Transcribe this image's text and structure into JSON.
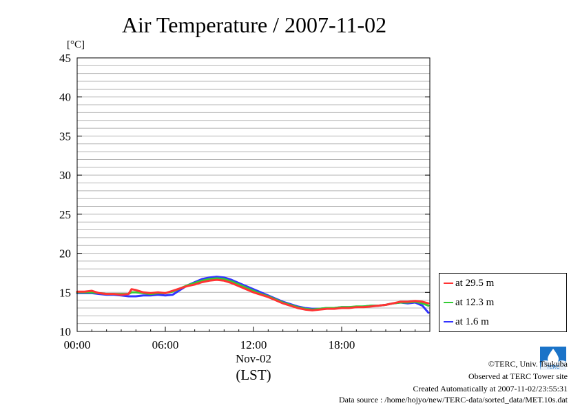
{
  "chart_data": {
    "type": "line",
    "title": "Air Temperature / 2007-11-02",
    "ylabel": "[°C]",
    "xlabel": "(LST)",
    "date_label": "Nov-02",
    "ylim": [
      10,
      45
    ],
    "yticks": [
      "10",
      "15",
      "20",
      "25",
      "30",
      "35",
      "40",
      "45"
    ],
    "xlim_hours": [
      0,
      24
    ],
    "xticks": [
      "00:00",
      "06:00",
      "12:00",
      "18:00"
    ],
    "grid": true,
    "legend_position": "right",
    "series": [
      {
        "name": "at 29.5 m",
        "color": "#ff3333",
        "x": [
          0,
          0.5,
          1,
          1.5,
          2,
          2.5,
          3,
          3.5,
          3.7,
          4,
          4.5,
          5,
          5.5,
          6,
          6.5,
          7,
          7.5,
          8,
          8.5,
          9,
          9.5,
          10,
          10.5,
          11,
          11.5,
          12,
          12.5,
          13,
          13.5,
          14,
          14.5,
          15,
          15.5,
          16,
          16.5,
          17,
          17.5,
          18,
          18.5,
          19,
          19.5,
          20,
          20.5,
          21,
          21.5,
          22,
          22.5,
          23,
          23.5,
          23.9
        ],
        "y": [
          15.1,
          15.1,
          15.2,
          14.9,
          14.8,
          14.8,
          14.7,
          14.8,
          15.4,
          15.3,
          15.0,
          14.9,
          15.0,
          14.9,
          15.2,
          15.5,
          15.8,
          16.0,
          16.3,
          16.5,
          16.6,
          16.5,
          16.2,
          15.8,
          15.4,
          15.0,
          14.7,
          14.4,
          14.0,
          13.6,
          13.3,
          13.0,
          12.8,
          12.7,
          12.8,
          12.9,
          12.9,
          13.0,
          13.0,
          13.1,
          13.1,
          13.2,
          13.3,
          13.4,
          13.6,
          13.8,
          13.8,
          13.9,
          13.8,
          13.6
        ]
      },
      {
        "name": "at 12.3 m",
        "color": "#33cc33",
        "x": [
          0,
          0.5,
          1,
          1.5,
          2,
          2.5,
          3,
          3.5,
          3.7,
          4,
          4.5,
          5,
          5.5,
          6,
          6.5,
          7,
          7.5,
          8,
          8.5,
          9,
          9.5,
          10,
          10.5,
          11,
          11.5,
          12,
          12.5,
          13,
          13.5,
          14,
          14.5,
          15,
          15.5,
          16,
          16.5,
          17,
          17.5,
          18,
          18.5,
          19,
          19.5,
          20,
          20.5,
          21,
          21.5,
          22,
          22.5,
          23,
          23.5,
          23.9
        ],
        "y": [
          15.0,
          15.0,
          15.0,
          14.9,
          14.8,
          14.8,
          14.8,
          14.8,
          15.0,
          15.0,
          14.9,
          14.8,
          14.9,
          14.9,
          15.1,
          15.5,
          15.9,
          16.2,
          16.5,
          16.7,
          16.8,
          16.7,
          16.4,
          16.0,
          15.6,
          15.2,
          14.8,
          14.5,
          14.1,
          13.7,
          13.4,
          13.1,
          12.9,
          12.8,
          12.9,
          13.0,
          13.0,
          13.1,
          13.1,
          13.2,
          13.2,
          13.3,
          13.3,
          13.4,
          13.6,
          13.7,
          13.7,
          13.8,
          13.6,
          13.3
        ]
      },
      {
        "name": "at 1.6 m",
        "color": "#3333ff",
        "x": [
          0,
          0.5,
          1,
          1.5,
          2,
          2.5,
          3,
          3.5,
          3.7,
          4,
          4.5,
          5,
          5.5,
          6,
          6.5,
          7,
          7.5,
          8,
          8.5,
          9,
          9.5,
          10,
          10.5,
          11,
          11.5,
          12,
          12.5,
          13,
          13.5,
          14,
          14.5,
          15,
          15.5,
          16,
          16.5,
          17,
          17.5,
          18,
          18.5,
          19,
          19.5,
          20,
          20.5,
          21,
          21.5,
          22,
          22.5,
          23,
          23.5,
          23.9
        ],
        "y": [
          14.9,
          14.9,
          14.9,
          14.8,
          14.7,
          14.7,
          14.6,
          14.5,
          14.5,
          14.5,
          14.6,
          14.6,
          14.7,
          14.6,
          14.7,
          15.3,
          15.9,
          16.3,
          16.7,
          16.9,
          17.0,
          16.9,
          16.6,
          16.2,
          15.8,
          15.4,
          15.0,
          14.6,
          14.2,
          13.8,
          13.5,
          13.2,
          13.0,
          12.9,
          12.9,
          13.0,
          13.0,
          13.1,
          13.1,
          13.1,
          13.2,
          13.3,
          13.3,
          13.4,
          13.6,
          13.7,
          13.6,
          13.7,
          13.3,
          12.4
        ]
      }
    ]
  },
  "footer": {
    "copyright": "©TERC, Univ. Tsukuba",
    "observed": "Observed at TERC Tower site",
    "created": "Created Automatically at 2007-11-02/23:55:31",
    "source": "Data source : /home/hojyo/new/TERC-data/sorted_data/MET.10s.dat"
  },
  "logo": {
    "icon": "terc-logo-icon",
    "text": "TERC"
  }
}
